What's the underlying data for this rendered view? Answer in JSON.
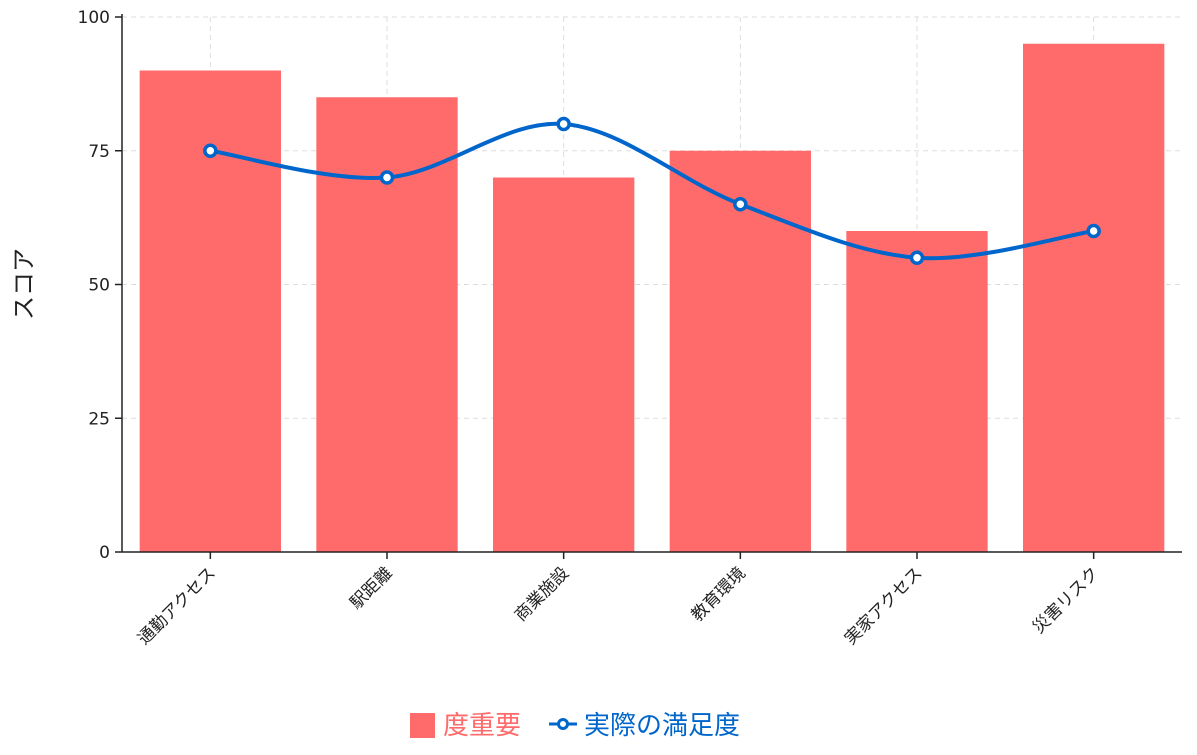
{
  "chart_data": {
    "type": "bar",
    "categories": [
      "通勤アクセス",
      "駅距離",
      "商業施設",
      "教育環境",
      "実家アクセス",
      "災害リスク"
    ],
    "series": [
      {
        "name": "度重要",
        "type": "bar",
        "values": [
          90,
          85,
          70,
          75,
          60,
          95
        ],
        "color": "#ff6b6b"
      },
      {
        "name": "実際の満足度",
        "type": "line",
        "values": [
          75,
          70,
          80,
          65,
          55,
          60
        ],
        "color": "#0066cc"
      }
    ],
    "ylabel": "スコア",
    "xlabel": "",
    "title": "",
    "ylim": [
      0,
      100
    ],
    "yticks": [
      0,
      25,
      50,
      75,
      100
    ],
    "grid": true,
    "legend_position": "bottom-center",
    "line_smooth": true
  },
  "colors": {
    "axis": "#222222",
    "grid": "#dddddd",
    "bar": "#ff6b6b",
    "line": "#0066cc"
  }
}
